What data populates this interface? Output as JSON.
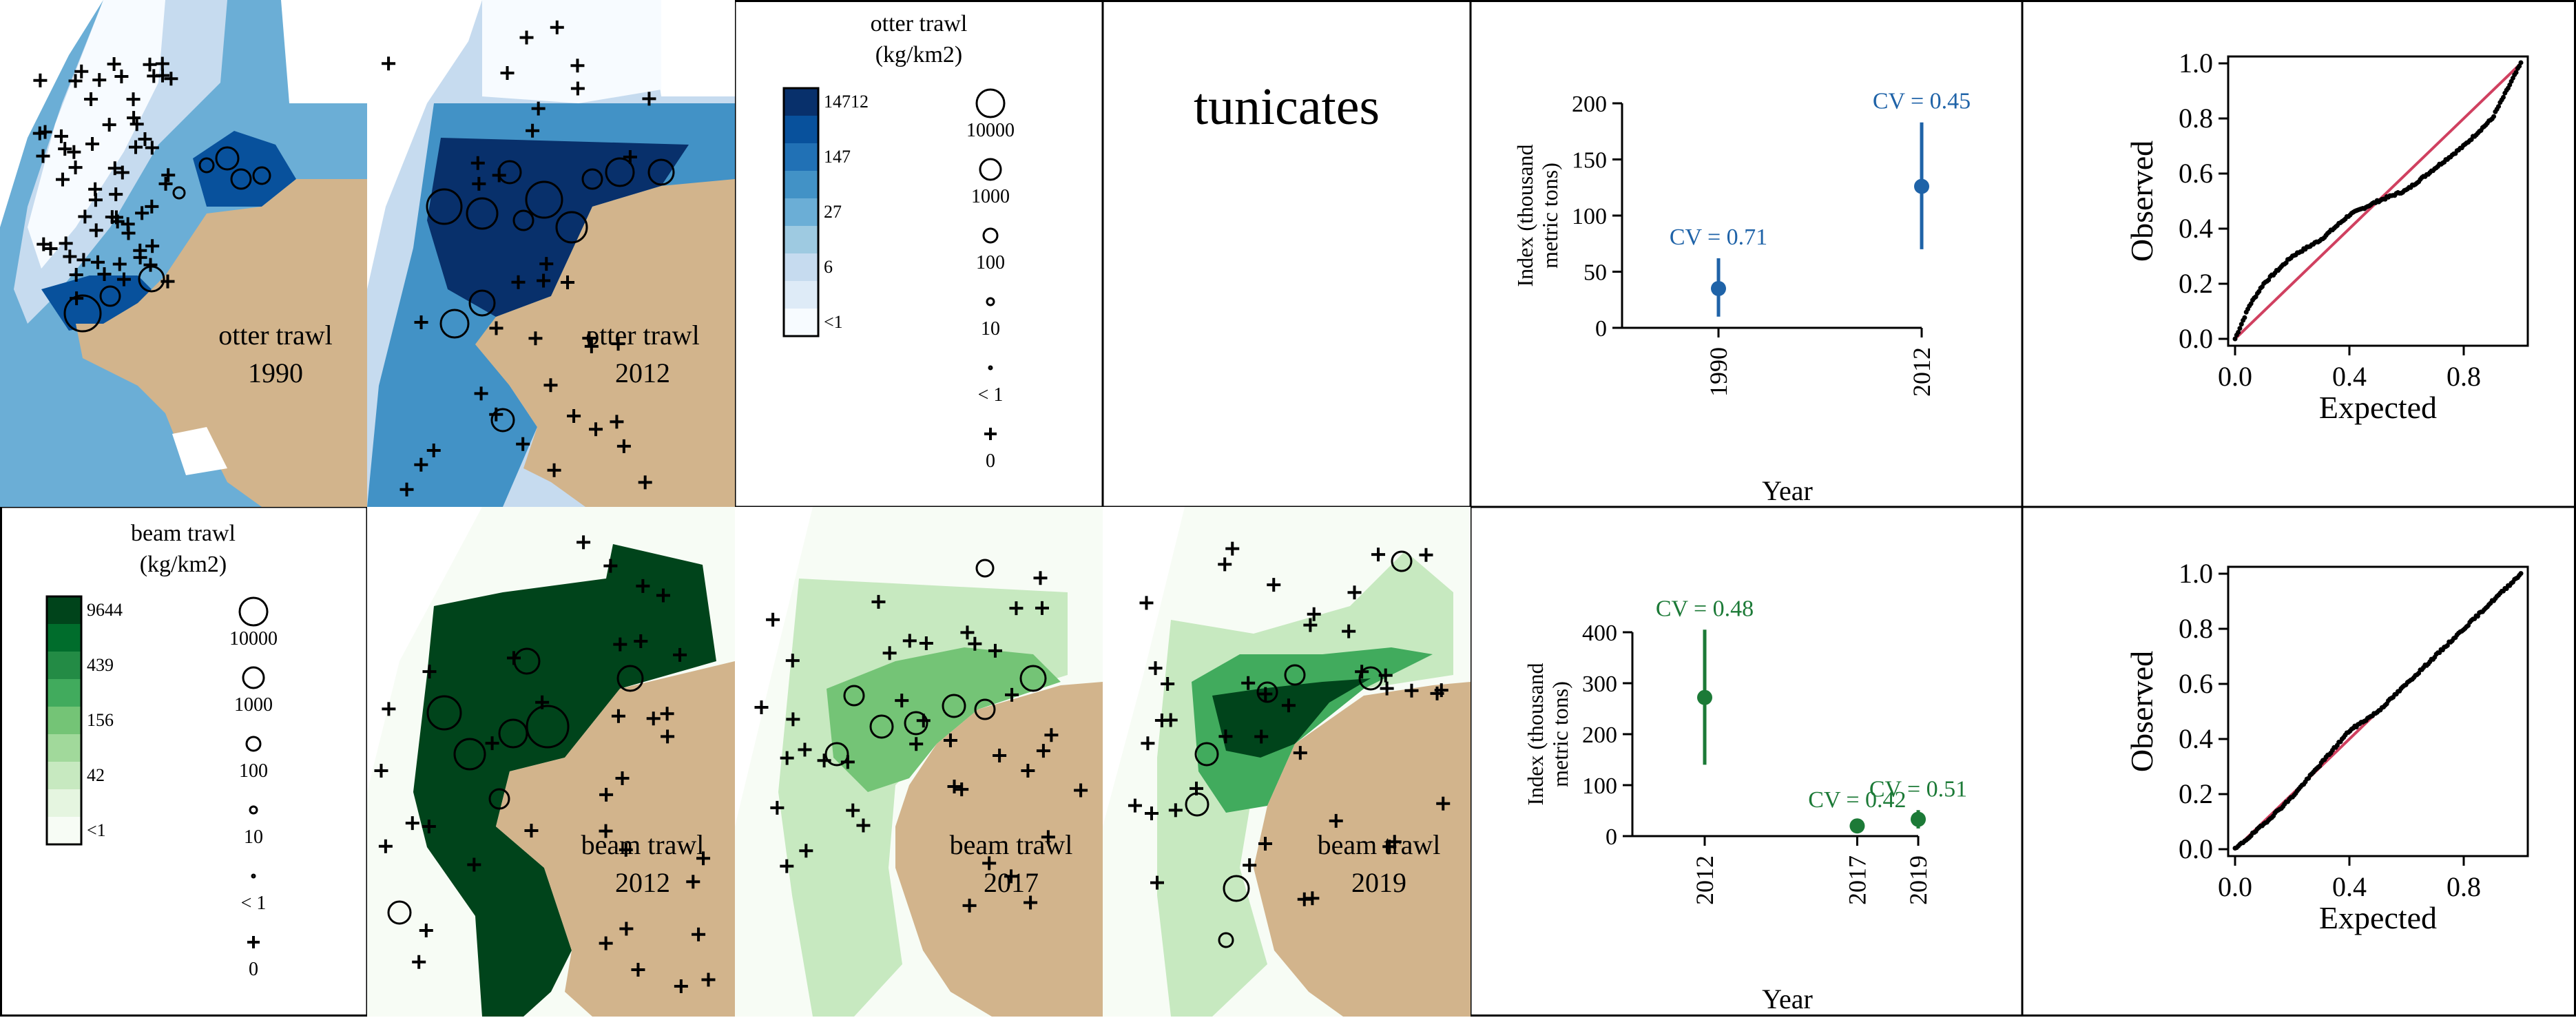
{
  "figure": {
    "title": "tunicates",
    "colors": {
      "land": "#D2B48C",
      "ink": "#000000",
      "otter_dot": "#1F63A8",
      "beam_dot": "#1C7A37",
      "qq_line": "#D04060"
    },
    "otter": {
      "legend": {
        "title_line1": "otter trawl",
        "title_line2": "(kg/km2)",
        "bin_labels": [
          "14712",
          "147",
          "27",
          "6",
          "<1"
        ],
        "bin_colors": [
          "#08306B",
          "#08519C",
          "#2171B5",
          "#4292C6",
          "#6BAED6",
          "#9ECAE1",
          "#C6DBEF",
          "#DEEBF7",
          "#F7FBFF"
        ],
        "size_labels": [
          "10000",
          "1000",
          "100",
          "10",
          "< 1",
          "0"
        ]
      },
      "maps": [
        {
          "gear": "otter trawl",
          "year": "1990"
        },
        {
          "gear": "otter trawl",
          "year": "2012"
        }
      ]
    },
    "beam": {
      "legend": {
        "title_line1": "beam trawl",
        "title_line2": "(kg/km2)",
        "bin_labels": [
          "9644",
          "439",
          "156",
          "42",
          "<1"
        ],
        "bin_colors": [
          "#00441B",
          "#006D2C",
          "#238B45",
          "#41AB5D",
          "#74C476",
          "#A1D99B",
          "#C7E9C0",
          "#E5F5E0",
          "#F7FCF5"
        ],
        "size_labels": [
          "10000",
          "1000",
          "100",
          "10",
          "< 1",
          "0"
        ]
      },
      "maps": [
        {
          "gear": "beam trawl",
          "year": "2012"
        },
        {
          "gear": "beam trawl",
          "year": "2017"
        },
        {
          "gear": "beam trawl",
          "year": "2019"
        }
      ]
    }
  },
  "chart_data": [
    {
      "type": "scatter",
      "name": "otter index",
      "xlabel": "Year",
      "ylabel_line1": "Index (thousand",
      "ylabel_line2": "metric tons)",
      "ylim": [
        0,
        200
      ],
      "yticks": [
        0,
        50,
        100,
        150,
        200
      ],
      "categories": [
        "1990",
        "2012"
      ],
      "values": [
        35,
        126
      ],
      "lower": [
        10,
        70
      ],
      "upper": [
        62,
        183
      ],
      "cv_labels": [
        "CV = 0.71",
        "CV = 0.45"
      ],
      "color": "#1F63A8"
    },
    {
      "type": "scatter",
      "name": "beam index",
      "xlabel": "Year",
      "ylabel_line1": "Index (thousand",
      "ylabel_line2": "metric tons)",
      "ylim": [
        0,
        400
      ],
      "yticks": [
        0,
        100,
        200,
        300,
        400
      ],
      "categories": [
        "2012",
        "2017",
        "2019"
      ],
      "x_years": [
        2012,
        2017,
        2019
      ],
      "values": [
        272,
        20,
        33
      ],
      "lower": [
        140,
        10,
        15
      ],
      "upper": [
        405,
        30,
        51
      ],
      "cv_labels": [
        "CV = 0.48",
        "CV = 0.42",
        "CV = 0.51"
      ],
      "color": "#1C7A37"
    },
    {
      "type": "scatter",
      "name": "otter qq",
      "xlabel": "Expected",
      "ylabel": "Observed",
      "xlim": [
        0,
        1
      ],
      "ylim": [
        0,
        1
      ],
      "xticks": [
        "0.0",
        "0.4",
        "0.8"
      ],
      "yticks": [
        "0.0",
        "0.2",
        "0.4",
        "0.6",
        "0.8",
        "1.0"
      ],
      "curve": [
        [
          0,
          0
        ],
        [
          0.05,
          0.12
        ],
        [
          0.1,
          0.2
        ],
        [
          0.2,
          0.3
        ],
        [
          0.3,
          0.36
        ],
        [
          0.4,
          0.45
        ],
        [
          0.5,
          0.5
        ],
        [
          0.6,
          0.54
        ],
        [
          0.7,
          0.62
        ],
        [
          0.8,
          0.7
        ],
        [
          0.9,
          0.8
        ],
        [
          1.0,
          1.0
        ]
      ]
    },
    {
      "type": "scatter",
      "name": "beam qq",
      "xlabel": "Expected",
      "ylabel": "Observed",
      "xlim": [
        0,
        1
      ],
      "ylim": [
        0,
        1
      ],
      "xticks": [
        "0.0",
        "0.4",
        "0.8"
      ],
      "yticks": [
        "0.0",
        "0.2",
        "0.4",
        "0.6",
        "0.8",
        "1.0"
      ],
      "curve": [
        [
          0,
          0
        ],
        [
          0.1,
          0.09
        ],
        [
          0.2,
          0.19
        ],
        [
          0.3,
          0.31
        ],
        [
          0.4,
          0.43
        ],
        [
          0.5,
          0.5
        ],
        [
          0.6,
          0.6
        ],
        [
          0.7,
          0.7
        ],
        [
          0.8,
          0.8
        ],
        [
          0.9,
          0.9
        ],
        [
          1.0,
          1.0
        ]
      ]
    }
  ]
}
